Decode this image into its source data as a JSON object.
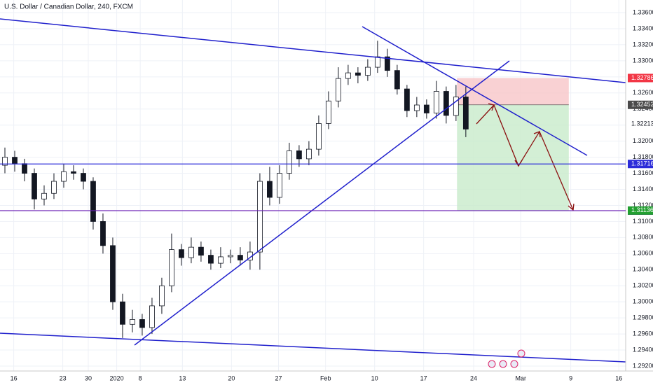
{
  "chart_data": {
    "type": "candlestick",
    "title": "U.S. Dollar / Canadian Dollar, 240, FXCM",
    "up_color": "#ffffff",
    "down_color": "#131722",
    "grid": true,
    "grid_color": "#eef1f7",
    "xlim": [
      0,
      63.8
    ],
    "ylim": [
      1.29139,
      1.33757
    ],
    "xticks": [
      {
        "value": 1.4,
        "label": "16"
      },
      {
        "value": 6.4,
        "label": "23"
      },
      {
        "value": 9.0,
        "label": "30"
      },
      {
        "value": 11.9,
        "label": "2020"
      },
      {
        "value": 14.3,
        "label": "8"
      },
      {
        "value": 18.6,
        "label": "13"
      },
      {
        "value": 23.6,
        "label": "20"
      },
      {
        "value": 28.4,
        "label": "27"
      },
      {
        "value": 33.2,
        "label": "Feb"
      },
      {
        "value": 38.2,
        "label": "10"
      },
      {
        "value": 43.2,
        "label": "17"
      },
      {
        "value": 48.3,
        "label": "24"
      },
      {
        "value": 53.1,
        "label": "Mar"
      },
      {
        "value": 58.2,
        "label": "9"
      },
      {
        "value": 63.1,
        "label": "16"
      }
    ],
    "yticks": [
      {
        "value": 1.292,
        "label": "1.29200"
      },
      {
        "value": 1.294,
        "label": "1.29400"
      },
      {
        "value": 1.296,
        "label": "1.29600"
      },
      {
        "value": 1.298,
        "label": "1.29800"
      },
      {
        "value": 1.3,
        "label": "1.30000"
      },
      {
        "value": 1.302,
        "label": "1.30200"
      },
      {
        "value": 1.304,
        "label": "1.30400"
      },
      {
        "value": 1.306,
        "label": "1.30600"
      },
      {
        "value": 1.308,
        "label": "1.30800"
      },
      {
        "value": 1.31,
        "label": "1.31000"
      },
      {
        "value": 1.312,
        "label": "1.31200"
      },
      {
        "value": 1.314,
        "label": "1.31400"
      },
      {
        "value": 1.316,
        "label": "1.31600"
      },
      {
        "value": 1.318,
        "label": "1.31800"
      },
      {
        "value": 1.32,
        "label": "1.32000"
      },
      {
        "value": 1.322,
        "label": "1.32200"
      },
      {
        "value": 1.324,
        "label": "1.32400"
      },
      {
        "value": 1.326,
        "label": "1.32600"
      },
      {
        "value": 1.328,
        "label": "1.32800"
      },
      {
        "value": 1.33,
        "label": "1.33000"
      },
      {
        "value": 1.332,
        "label": "1.33200"
      },
      {
        "value": 1.334,
        "label": "1.33400"
      },
      {
        "value": 1.336,
        "label": "1.33600"
      }
    ],
    "x": [
      0.5,
      1.5,
      2.5,
      3.5,
      4.5,
      5.5,
      6.5,
      7.5,
      8.5,
      9.5,
      10.5,
      11.5,
      12.5,
      13.5,
      14.5,
      15.5,
      16.5,
      17.5,
      18.5,
      19.5,
      20.5,
      21.5,
      22.5,
      23.5,
      24.5,
      25.5,
      26.5,
      27.5,
      28.5,
      29.5,
      30.5,
      31.5,
      32.5,
      33.5,
      34.5,
      35.5,
      36.5,
      37.5,
      38.5,
      39.5,
      40.5,
      41.5,
      42.5,
      43.5,
      44.5,
      45.5,
      46.5,
      47.5
    ],
    "open": [
      1.317,
      1.318,
      1.3172,
      1.316,
      1.3128,
      1.3135,
      1.315,
      1.3162,
      1.316,
      1.315,
      1.31,
      1.307,
      1.3,
      1.2972,
      1.2978,
      1.2968,
      1.2995,
      1.302,
      1.3065,
      1.3055,
      1.3068,
      1.3058,
      1.3048,
      1.3056,
      1.3058,
      1.3052,
      1.3062,
      1.315,
      1.313,
      1.316,
      1.3188,
      1.3178,
      1.319,
      1.3222,
      1.325,
      1.3278,
      1.3285,
      1.3282,
      1.3292,
      1.3305,
      1.3288,
      1.3265,
      1.3238,
      1.3245,
      1.3235,
      1.3262,
      1.3232,
      1.3255
    ],
    "high": [
      1.3192,
      1.3188,
      1.3178,
      1.3166,
      1.3145,
      1.316,
      1.3172,
      1.317,
      1.3166,
      1.3155,
      1.311,
      1.308,
      1.301,
      1.299,
      1.2985,
      1.3005,
      1.303,
      1.3085,
      1.3072,
      1.308,
      1.3075,
      1.3065,
      1.3068,
      1.3065,
      1.3068,
      1.3075,
      1.316,
      1.3168,
      1.317,
      1.3198,
      1.3195,
      1.32,
      1.3232,
      1.3262,
      1.3292,
      1.3295,
      1.3292,
      1.3302,
      1.3325,
      1.3315,
      1.3295,
      1.327,
      1.3255,
      1.3252,
      1.3275,
      1.3268,
      1.327,
      1.3268
    ],
    "low": [
      1.316,
      1.3162,
      1.315,
      1.3115,
      1.312,
      1.3128,
      1.3142,
      1.3152,
      1.314,
      1.309,
      1.306,
      1.299,
      1.2955,
      1.2962,
      1.2958,
      1.296,
      1.2985,
      1.3012,
      1.3045,
      1.3048,
      1.305,
      1.304,
      1.3042,
      1.3048,
      1.3045,
      1.304,
      1.304,
      1.312,
      1.3122,
      1.3152,
      1.3168,
      1.317,
      1.3182,
      1.3215,
      1.3242,
      1.327,
      1.3272,
      1.3275,
      1.3285,
      1.328,
      1.3258,
      1.323,
      1.323,
      1.3228,
      1.3228,
      1.3222,
      1.3225,
      1.3205
    ],
    "close": [
      1.318,
      1.3172,
      1.316,
      1.3128,
      1.3135,
      1.315,
      1.3162,
      1.316,
      1.315,
      1.31,
      1.307,
      1.3,
      1.2972,
      1.2978,
      1.2968,
      1.2995,
      1.302,
      1.3065,
      1.3055,
      1.3068,
      1.3058,
      1.3048,
      1.3056,
      1.3058,
      1.3052,
      1.3062,
      1.315,
      1.313,
      1.316,
      1.3188,
      1.3178,
      1.319,
      1.3222,
      1.325,
      1.3278,
      1.3285,
      1.3282,
      1.3292,
      1.3305,
      1.3288,
      1.3265,
      1.3238,
      1.3245,
      1.3235,
      1.3262,
      1.3232,
      1.3255,
      1.3215
    ],
    "position": {
      "x": [
        46.6,
        58.0
      ],
      "stop": 1.32786,
      "entry": 1.32452,
      "target": 1.31136,
      "stop_color": "#f7c5c8",
      "target_color": "#c8ebcb"
    },
    "price_labels": [
      {
        "value": 1.32786,
        "label": "1.32786",
        "bg": "#f23645",
        "text_color": "#ffffff"
      },
      {
        "value": 1.32452,
        "label": "1.32452",
        "bg": "#4a4a4a",
        "text_color": "#ffffff"
      },
      {
        "value": 1.32213,
        "label": "1.32213",
        "bg": "#ffffff",
        "text_color": "#131722"
      },
      {
        "value": 1.31716,
        "label": "1.31716",
        "bg": "#2b2bd9",
        "text_color": "#ffffff",
        "line": true
      },
      {
        "value": 1.31135,
        "label": "1.31135",
        "bg": "#6a1fb5",
        "text_color": "#ffffff",
        "line": true
      },
      {
        "value": 1.31136,
        "label": "1.31136",
        "bg": "#22a030",
        "text_color": "#ffffff"
      }
    ]
  }
}
